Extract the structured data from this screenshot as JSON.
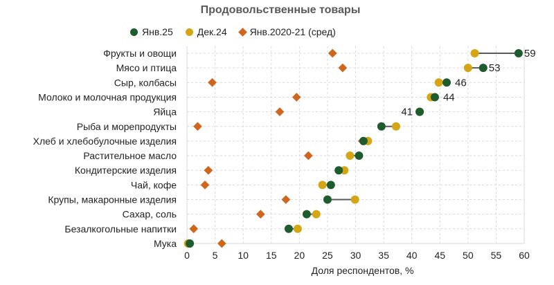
{
  "chart_data": {
    "type": "scatter",
    "subtype": "dot-plot",
    "title": "Продовольственные товары",
    "xlabel": "Доля респондентов, %",
    "ylabel": "",
    "xlim": [
      0,
      60
    ],
    "xticks": [
      0,
      5,
      10,
      15,
      20,
      25,
      30,
      35,
      40,
      45,
      50,
      55,
      60
    ],
    "grid": true,
    "legend_placement": "top",
    "categories": [
      "Фрукты и овощи",
      "Мясо и птица",
      "Сыр, колбасы",
      "Молоко и молочная продукция",
      "Яйца",
      "Рыба и морепродукты",
      "Хлеб и хлебобулочные изделия",
      "Растительное масло",
      "Кондитерские изделия",
      "Чай, кофе",
      "Крупы, макаронные изделия",
      "Сахар, соль",
      "Безалкогольные напитки",
      "Мука"
    ],
    "series": [
      {
        "name": "Янв.25",
        "color": "#1e5c2e",
        "marker": "circle",
        "values": [
          59.0,
          52.7,
          46.2,
          44.1,
          41.4,
          34.6,
          31.4,
          30.6,
          27.0,
          25.6,
          25.0,
          21.3,
          18.1,
          0.5
        ]
      },
      {
        "name": "Дек.24",
        "color": "#d4a514",
        "marker": "circle",
        "values": [
          51.2,
          50.0,
          44.8,
          43.4,
          41.4,
          37.2,
          32.2,
          29.0,
          28.0,
          24.1,
          29.9,
          23.0,
          19.7,
          0.2
        ]
      },
      {
        "name": "Янв.2020-21 (сред)",
        "color": "#d0661e",
        "marker": "diamond",
        "values": [
          25.9,
          27.7,
          4.5,
          19.5,
          16.5,
          1.9,
          31.2,
          21.6,
          3.8,
          3.2,
          17.6,
          13.1,
          1.2,
          6.2
        ]
      }
    ],
    "data_labels": [
      {
        "category_index": 0,
        "text": "59",
        "side": "right"
      },
      {
        "category_index": 1,
        "text": "53",
        "side": "right"
      },
      {
        "category_index": 2,
        "text": "46",
        "side": "right"
      },
      {
        "category_index": 3,
        "text": "44",
        "side": "right"
      },
      {
        "category_index": 4,
        "text": "41",
        "side": "left"
      }
    ],
    "connector_color": "#595959"
  }
}
